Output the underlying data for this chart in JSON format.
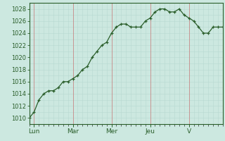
{
  "x_values": [
    0,
    1,
    2,
    3,
    4,
    5,
    6,
    7,
    8,
    9,
    10,
    11,
    12,
    13,
    14,
    15,
    16,
    17,
    18,
    19,
    20,
    21,
    22,
    23,
    24,
    25,
    26,
    27,
    28,
    29,
    30,
    31,
    32,
    33,
    34,
    35,
    36,
    37,
    38,
    39,
    40
  ],
  "y_values": [
    1010,
    1011,
    1013,
    1014,
    1014.5,
    1014.5,
    1015,
    1016,
    1016,
    1016.5,
    1017,
    1018,
    1018.5,
    1020,
    1021,
    1022,
    1022.5,
    1024,
    1025,
    1025.5,
    1025.5,
    1025,
    1025,
    1025,
    1026,
    1026.5,
    1027.5,
    1028,
    1028,
    1027.5,
    1027.5,
    1028,
    1027,
    1026.5,
    1026,
    1025,
    1024,
    1024,
    1025,
    1025,
    1025
  ],
  "day_ticks_x": [
    1,
    9,
    17,
    25,
    33
  ],
  "day_labels": [
    "Lun",
    "Mar",
    "Mer",
    "Jeu",
    "V"
  ],
  "bg_color": "#cce8e0",
  "line_color": "#2a5e2a",
  "marker_color": "#2a5e2a",
  "grid_minor_color": "#b8d8d0",
  "grid_major_color": "#9ec8c0",
  "vline_color": "#cc6666",
  "axis_label_color": "#2a5e2a",
  "spine_color": "#2a5e2a",
  "ylim": [
    1009,
    1029
  ],
  "xlim": [
    0,
    40
  ],
  "ytick_major": 2,
  "ytick_minor": 1,
  "xtick_minor": 1
}
